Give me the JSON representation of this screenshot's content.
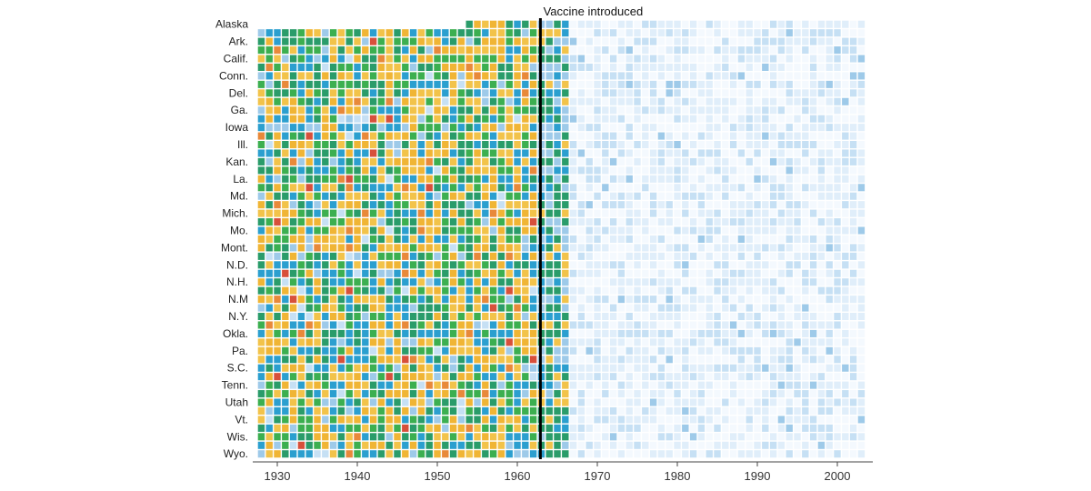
{
  "chart_data": {
    "type": "heatmap",
    "title": "",
    "xlabel": "",
    "ylabel": "",
    "x_range": [
      1928,
      2003
    ],
    "x_ticks": [
      1930,
      1940,
      1950,
      1960,
      1970,
      1980,
      1990,
      2000
    ],
    "row_count": 51,
    "rows": [
      "Alaska",
      "Ark.",
      "Calif.",
      "Conn.",
      "Del.",
      "Ga.",
      "Iowa",
      "Ill.",
      "Kan.",
      "La.",
      "Md.",
      "Mich.",
      "Mo.",
      "Mont.",
      "N.D.",
      "N.H.",
      "N.M",
      "N.Y.",
      "Okla.",
      "Pa.",
      "S.C.",
      "Tenn.",
      "Utah",
      "Vt.",
      "Wis.",
      "Wyo."
    ],
    "annotation": {
      "year": 1963,
      "label": "Vaccine introduced"
    },
    "color_scale": [
      "#f4f9fe",
      "#e0eefa",
      "#c6e0f4",
      "#9ecae9",
      "#2b9fcf",
      "#2a9c6a",
      "#3caf50",
      "#f2c34a",
      "#f0b535",
      "#e8893a",
      "#d7503b"
    ],
    "levels_note_colors": {
      "empty": "#ffffff"
    }
  }
}
